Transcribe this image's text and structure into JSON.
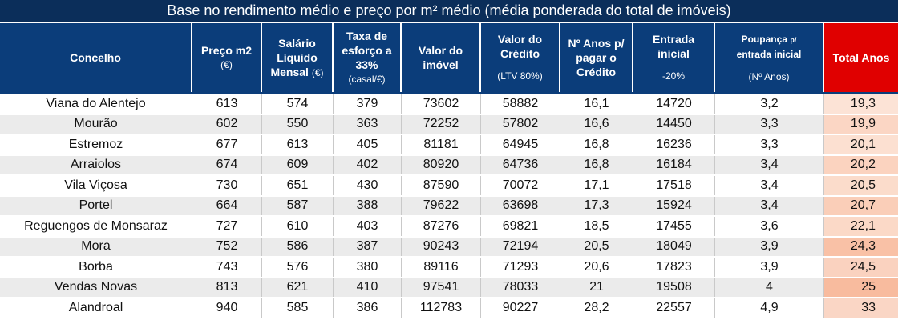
{
  "title": "Base no rendimento médio e preço por m² médio (média ponderada do total de imóveis)",
  "headers": {
    "concelho": "Concelho",
    "preco_l1": "Preço m2",
    "preco_l2": "(€)",
    "salario_l1": "Salário",
    "salario_l2": "Líquido",
    "salario_l3": "Mensal",
    "salario_unit": "(€)",
    "taxa_l1": "Taxa de",
    "taxa_l2": "esforço a",
    "taxa_l3": "33%",
    "taxa_l4": "(casal/€)",
    "valor_imovel_l1": "Valor do",
    "valor_imovel_l2": "imóvel",
    "valor_credito_l1": "Valor do",
    "valor_credito_l2": "Crédito",
    "valor_credito_l3": "(LTV 80%)",
    "anos_l1": "Nº Anos p/",
    "anos_l2": "pagar o",
    "anos_l3": "Crédito",
    "entrada_l1": "Entrada",
    "entrada_l2": "inicial",
    "entrada_l3": "-20%",
    "poupanca_l1": "Poupança",
    "poupanca_p": "p/",
    "poupanca_l2": "entrada inicial",
    "poupanca_l3": "(Nº Anos)",
    "total": "Total Anos"
  },
  "rows": [
    {
      "concelho": "Viana do Alentejo",
      "preco": "613",
      "salario": "574",
      "taxa": "379",
      "valor_imovel": "73602",
      "valor_credito": "58882",
      "anos": "16,1",
      "entrada": "14720",
      "poupanca": "3,2",
      "total": "19,3",
      "total_color": "#fce3d6"
    },
    {
      "concelho": "Mourão",
      "preco": "602",
      "salario": "550",
      "taxa": "363",
      "valor_imovel": "72252",
      "valor_credito": "57802",
      "anos": "16,6",
      "entrada": "14450",
      "poupanca": "3,3",
      "total": "19,9",
      "total_color": "#fbd6c4"
    },
    {
      "concelho": "Estremoz",
      "preco": "677",
      "salario": "613",
      "taxa": "405",
      "valor_imovel": "81181",
      "valor_credito": "64945",
      "anos": "16,8",
      "entrada": "16236",
      "poupanca": "3,3",
      "total": "20,1",
      "total_color": "#fce0d1"
    },
    {
      "concelho": "Arraiolos",
      "preco": "674",
      "salario": "609",
      "taxa": "402",
      "valor_imovel": "80920",
      "valor_credito": "64736",
      "anos": "16,8",
      "entrada": "16184",
      "poupanca": "3,4",
      "total": "20,2",
      "total_color": "#fbd3bf"
    },
    {
      "concelho": "Vila Viçosa",
      "preco": "730",
      "salario": "651",
      "taxa": "430",
      "valor_imovel": "87590",
      "valor_credito": "70072",
      "anos": "17,1",
      "entrada": "17518",
      "poupanca": "3,4",
      "total": "20,5",
      "total_color": "#fbdccb"
    },
    {
      "concelho": "Portel",
      "preco": "664",
      "salario": "587",
      "taxa": "388",
      "valor_imovel": "79622",
      "valor_credito": "63698",
      "anos": "17,3",
      "entrada": "15924",
      "poupanca": "3,4",
      "total": "20,7",
      "total_color": "#face b8"
    },
    {
      "concelho": "Reguengos de Monsaraz",
      "preco": "727",
      "salario": "610",
      "taxa": "403",
      "valor_imovel": "87276",
      "valor_credito": "69821",
      "anos": "18,5",
      "entrada": "17455",
      "poupanca": "3,6",
      "total": "22,1",
      "total_color": "#fbd9c7"
    },
    {
      "concelho": "Mora",
      "preco": "752",
      "salario": "586",
      "taxa": "387",
      "valor_imovel": "90243",
      "valor_credito": "72194",
      "anos": "20,5",
      "entrada": "18049",
      "poupanca": "3,9",
      "total": "24,3",
      "total_color": "#f9c1a6"
    },
    {
      "concelho": "Borba",
      "preco": "743",
      "salario": "576",
      "taxa": "380",
      "valor_imovel": "89116",
      "valor_credito": "71293",
      "anos": "20,6",
      "entrada": "17823",
      "poupanca": "3,9",
      "total": "24,5",
      "total_color": "#fad2bf"
    },
    {
      "concelho": "Vendas Novas",
      "preco": "813",
      "salario": "621",
      "taxa": "410",
      "valor_imovel": "97541",
      "valor_credito": "78033",
      "anos": "21",
      "entrada": "19508",
      "poupanca": "4",
      "total": "25",
      "total_color": "#f8bb9e"
    },
    {
      "concelho": "Alandroal",
      "preco": "940",
      "salario": "585",
      "taxa": "386",
      "valor_imovel": "112783",
      "valor_credito": "90227",
      "anos": "28,2",
      "entrada": "22557",
      "poupanca": "4,9",
      "total": "33",
      "total_color": "#fad6c5"
    }
  ]
}
